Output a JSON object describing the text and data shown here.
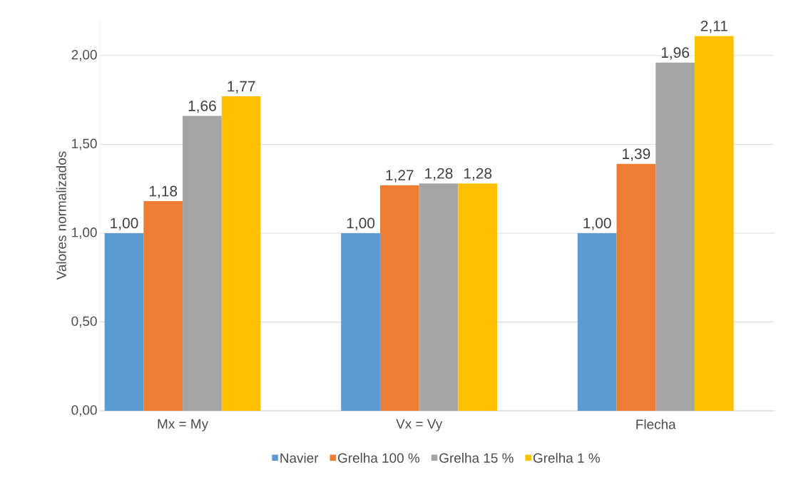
{
  "chart_data": {
    "type": "bar",
    "ylabel": "Valores normalizados",
    "categories": [
      "Mx = My",
      "Vx = Vy",
      "Flecha"
    ],
    "series": [
      {
        "name": "Navier",
        "color": "#5b9bd5",
        "values": [
          1.0,
          1.0,
          1.0
        ],
        "value_labels": [
          "1,00",
          "1,00",
          "1,00"
        ]
      },
      {
        "name": "Grelha 100 %",
        "color": "#ed7d31",
        "values": [
          1.18,
          1.27,
          1.39
        ],
        "value_labels": [
          "1,18",
          "1,27",
          "1,39"
        ]
      },
      {
        "name": "Grelha 15 %",
        "color": "#a5a5a5",
        "values": [
          1.66,
          1.28,
          1.96
        ],
        "value_labels": [
          "1,66",
          "1,28",
          "1,96"
        ]
      },
      {
        "name": "Grelha 1 %",
        "color": "#ffc000",
        "values": [
          1.77,
          1.28,
          2.11
        ],
        "value_labels": [
          "1,77",
          "1,28",
          "2,11"
        ]
      }
    ],
    "ylim": [
      0,
      2.2
    ],
    "yticks": [
      {
        "value": 0,
        "label": "0,00"
      },
      {
        "value": 0.5,
        "label": "0,50"
      },
      {
        "value": 1.0,
        "label": "1,00"
      },
      {
        "value": 1.5,
        "label": "1,50"
      },
      {
        "value": 2.0,
        "label": "2,00"
      }
    ],
    "grid": "y",
    "legend": "bottom"
  }
}
